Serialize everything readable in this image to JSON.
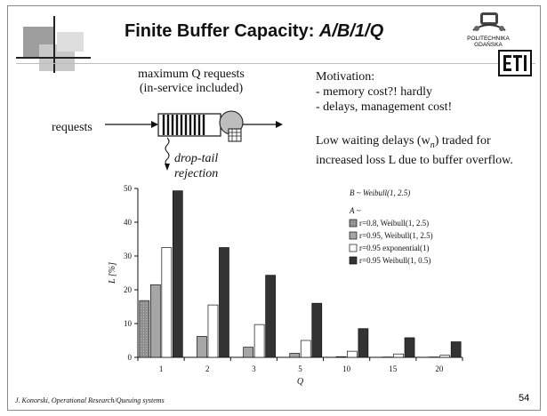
{
  "slide": {
    "title_prefix": "Finite Buffer Capacity: ",
    "title_model": "A/B/1/Q",
    "logo": {
      "line1": "POLITECHNIKA",
      "line2": "GDAŃSKA"
    },
    "diagram": {
      "max_label_line1": "maximum Q requests",
      "max_label_line2": "(in-service included)",
      "requests_label": "requests",
      "drop_line1": "drop-tail",
      "drop_line2": "rejection"
    },
    "motivation": {
      "heading": "Motivation:",
      "bullets": [
        "- memory cost?! hardly",
        "- delays, management cost!"
      ]
    },
    "summary": {
      "line1": "Low waiting delays (w",
      "line1_sub": "n",
      "line1_end": ") traded for",
      "line2": "increased loss L due to buffer overflow."
    },
    "footer": "J. Konorski, Operational Research/Queuing systems",
    "page_number": "54",
    "colors": {
      "frame": "#8a8a8a",
      "series": [
        "#9a9a9a",
        "#a6a6a6",
        "#ffffff",
        "#333333"
      ]
    }
  },
  "chart_data": {
    "type": "bar",
    "categories": [
      "1",
      "2",
      "3",
      "5",
      "10",
      "15",
      "20"
    ],
    "xlabel": "Q",
    "ylabel": "L [%]",
    "ylim": [
      0,
      50
    ],
    "yticks": [
      0,
      10,
      20,
      30,
      40,
      50
    ],
    "legend": {
      "placement": "top-right",
      "header1": "B ~ Weibull(1, 2.5)",
      "header2": "A ~"
    },
    "series": [
      {
        "name": "r=0.8, Weibull(1, 2.5)",
        "values": [
          16.8,
          0.0,
          0.0,
          0.0,
          0.0,
          0.0,
          0.0
        ]
      },
      {
        "name": "r=0.95, Weibull(1, 2.5)",
        "values": [
          21.5,
          6.2,
          3.0,
          1.2,
          0.2,
          0.1,
          0.1
        ]
      },
      {
        "name": "r=0.95 exponential(1)",
        "values": [
          32.5,
          15.5,
          9.7,
          5.0,
          1.8,
          1.0,
          0.6
        ]
      },
      {
        "name": "r=0.95 Weibull(1, 0.5)",
        "values": [
          49.3,
          32.5,
          24.3,
          16.0,
          8.5,
          5.8,
          4.6
        ]
      }
    ]
  }
}
